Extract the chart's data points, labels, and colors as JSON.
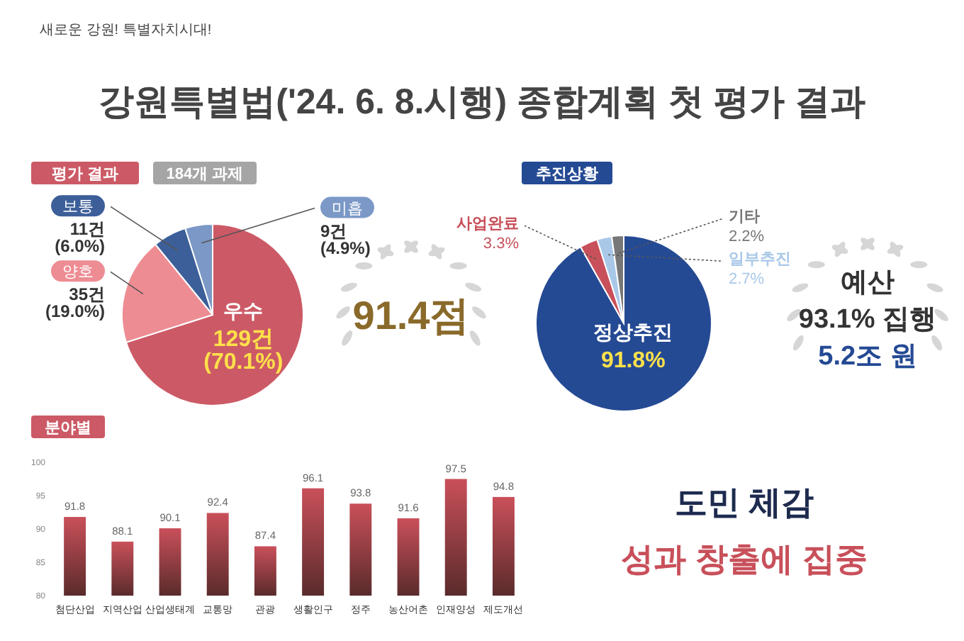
{
  "chart_data": [
    {
      "type": "other",
      "title": "강원특별법('24. 6. 8.시행) 종합계획 첫 평가 결과",
      "annotations": [
        "새로운 강원! 특별자치시대!"
      ]
    },
    {
      "type": "pie",
      "title": "평가 결과",
      "subtitle": "184개 과제",
      "categories": [
        "우수",
        "양호",
        "보통",
        "미흡"
      ],
      "values": [
        129,
        35,
        11,
        9
      ],
      "colors": [
        "#cc5a66",
        "#ee8c93",
        "#3d5f99",
        "#7b98c6"
      ],
      "value_labels": [
        "129건\n(70.1%)",
        "35건\n(19.0%)",
        "11건\n(6.0%)",
        "9건\n(4.9%)"
      ],
      "annotations": [
        "91.4점"
      ]
    },
    {
      "type": "pie",
      "title": "추진상황",
      "categories": [
        "정상추진",
        "사업완료",
        "일부추진",
        "기타"
      ],
      "values": [
        91.8,
        3.3,
        2.7,
        2.2
      ],
      "colors": [
        "#254a94",
        "#c8505a",
        "#a9c8e8",
        "#777777"
      ],
      "value_labels": [
        "91.8%",
        "3.3%",
        "2.7%",
        "2.2%"
      ]
    },
    {
      "type": "other",
      "annotations": [
        "예산",
        "93.1% 집행",
        "5.2조 원"
      ]
    },
    {
      "type": "bar",
      "title": "분야별",
      "categories": [
        "첨단산업",
        "지역산업",
        "산업생태계",
        "교통망",
        "관광",
        "생활인구",
        "정주",
        "농산어촌",
        "인재양성",
        "제도개선"
      ],
      "values": [
        91.8,
        88.1,
        90.1,
        92.4,
        87.4,
        96.1,
        93.8,
        91.6,
        97.5,
        94.8
      ],
      "color": "#c9505a",
      "ylim": [
        80,
        100
      ],
      "yticks": [
        80,
        85,
        90,
        95,
        100
      ],
      "data_labels": true
    },
    {
      "type": "other",
      "annotations": [
        "도민 체감",
        "성과 창출에 집중"
      ]
    }
  ]
}
